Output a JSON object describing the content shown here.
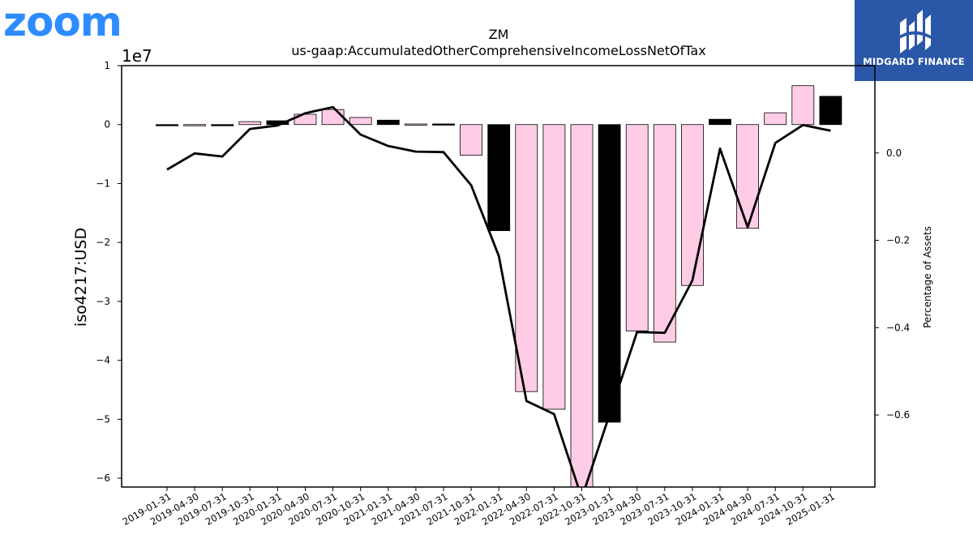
{
  "branding": {
    "left_logo": "zoom",
    "right_logo": "MIDGARD FINANCE",
    "right_logo_color": "#2B57A8",
    "left_logo_color": "#2D8CFF"
  },
  "chart_data": {
    "type": "bar",
    "title": "ZM",
    "subtitle": "us-gaap:AccumulatedOtherComprehensiveIncomeLossNetOfTax",
    "ylabel": "iso4217:USD",
    "y2label": "Percentage of Assets",
    "y_offset_label": "1e7",
    "ylim": [
      -61500000,
      10000000
    ],
    "y2lim": [
      -0.765,
      0.2
    ],
    "y_ticks": [
      1,
      0,
      -1,
      -2,
      -3,
      -4,
      -5,
      -6
    ],
    "y_tick_labels": [
      "1",
      "0",
      "−1",
      "−2",
      "−3",
      "−4",
      "−5",
      "−6"
    ],
    "y2_ticks": [
      0.0,
      -0.2,
      -0.4,
      -0.6
    ],
    "y2_tick_labels": [
      "0.0",
      "−0.2",
      "−0.4",
      "−0.6"
    ],
    "categories": [
      "2019-01-31",
      "2019-04-30",
      "2019-07-31",
      "2019-10-31",
      "2020-01-31",
      "2020-04-30",
      "2020-07-31",
      "2020-10-31",
      "2021-01-31",
      "2021-04-30",
      "2021-07-31",
      "2021-10-31",
      "2022-01-31",
      "2022-04-30",
      "2022-07-31",
      "2022-10-31",
      "2023-01-31",
      "2023-04-30",
      "2023-07-31",
      "2023-10-31",
      "2024-01-31",
      "2024-04-30",
      "2024-07-31",
      "2024-10-31",
      "2025-01-31"
    ],
    "series": [
      {
        "values": [
          -150000,
          -70000,
          -130000,
          500000,
          650000,
          1750000,
          2550000,
          1200000,
          750000,
          100000,
          110000,
          -5200000,
          -18000000,
          -45300000,
          -48300000,
          -62500000,
          -50500000,
          -35000000,
          -36900000,
          -27300000,
          900000,
          -17600000,
          2000000,
          6600000,
          4800000
        ],
        "colors": [
          "#000000",
          "#FFCCE6",
          "#000000",
          "#FFCCE6",
          "#000000",
          "#FFCCE6",
          "#FFCCE6",
          "#FFCCE6",
          "#000000",
          "#FFCCE6",
          "#000000",
          "#FFCCE6",
          "#000000",
          "#FFCCE6",
          "#FFCCE6",
          "#FFCCE6",
          "#000000",
          "#FFCCE6",
          "#FFCCE6",
          "#FFCCE6",
          "#000000",
          "#FFCCE6",
          "#FFCCE6",
          "#FFCCE6",
          "#000000"
        ]
      },
      {
        "axis": "secondary",
        "type": "line",
        "values": [
          -0.038,
          -0.001,
          -0.008,
          0.055,
          0.063,
          0.091,
          0.105,
          0.042,
          0.016,
          0.003,
          0.002,
          -0.074,
          -0.236,
          -0.568,
          -0.598,
          -0.79,
          -0.6,
          -0.41,
          -0.412,
          -0.292,
          0.01,
          -0.17,
          0.023,
          0.064,
          0.051
        ]
      }
    ],
    "grid": false,
    "legend": "none"
  }
}
